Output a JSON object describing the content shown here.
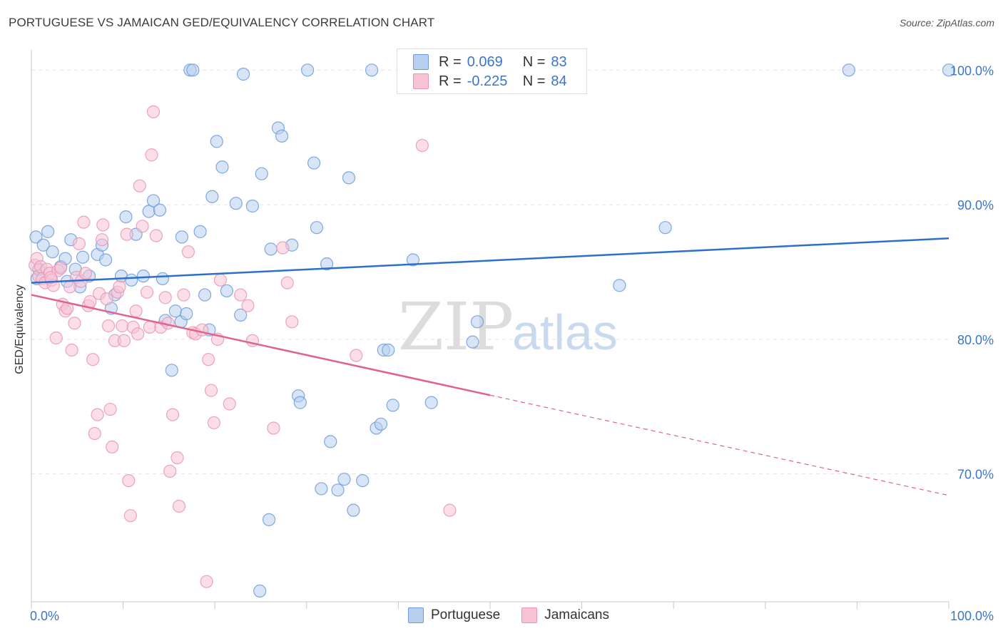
{
  "title": "PORTUGUESE VS JAMAICAN GED/EQUIVALENCY CORRELATION CHART",
  "source": "Source: ZipAtlas.com",
  "watermark": {
    "zip": "ZIP",
    "atlas": "atlas"
  },
  "legend_stats": [
    {
      "r_label": "R =",
      "r_value": "0.069",
      "n_label": "N =",
      "n_value": "83"
    },
    {
      "r_label": "R =",
      "r_value": "-0.225",
      "n_label": "N =",
      "n_value": "84"
    }
  ],
  "legend_series": [
    "Portuguese",
    "Jamaicans"
  ],
  "colors": {
    "blue": "#3b76c8",
    "blue_fill": "#b7d0f0",
    "blue_line": "#2d6fc9",
    "pink": "#e46a97",
    "pink_fill": "#f7c3d5",
    "pink_line": "#e0628f",
    "tick_text": "#3b76c8",
    "grid": "#e2e2e2"
  },
  "chart_data": {
    "type": "scatter",
    "title": "PORTUGUESE VS JAMAICAN GED/EQUIVALENCY CORRELATION CHART",
    "xlabel": "",
    "ylabel": "GED/Equivalency",
    "xlim": [
      0,
      100
    ],
    "ylim": [
      60.5,
      101.5
    ],
    "x_tick_labels": [
      "0.0%",
      "100.0%"
    ],
    "y_ticks": [
      {
        "value": 70,
        "label": "70.0%"
      },
      {
        "value": 80,
        "label": "80.0%"
      },
      {
        "value": 90,
        "label": "90.0%"
      },
      {
        "value": 100,
        "label": "100.0%"
      }
    ],
    "grid": true,
    "legend_position": "bottom-center",
    "series": [
      {
        "name": "Portuguese",
        "r": 0.069,
        "n": 83,
        "trend": {
          "x0": 0,
          "y0": 84.2,
          "x1": 100,
          "y1": 87.5,
          "solid_until": 100
        },
        "points": [
          [
            0.5,
            87.6
          ],
          [
            0.6,
            84.5
          ],
          [
            0.8,
            85.2
          ],
          [
            1.3,
            87.0
          ],
          [
            1.8,
            88.0
          ],
          [
            2.3,
            86.5
          ],
          [
            3.2,
            85.4
          ],
          [
            3.7,
            86.0
          ],
          [
            3.9,
            84.3
          ],
          [
            4.3,
            87.4
          ],
          [
            4.8,
            85.2
          ],
          [
            5.3,
            83.9
          ],
          [
            5.6,
            86.1
          ],
          [
            6.3,
            84.7
          ],
          [
            7.2,
            86.3
          ],
          [
            7.7,
            87.0
          ],
          [
            8.1,
            85.9
          ],
          [
            8.7,
            82.3
          ],
          [
            9.1,
            83.3
          ],
          [
            9.8,
            84.7
          ],
          [
            10.3,
            89.1
          ],
          [
            10.9,
            84.4
          ],
          [
            11.4,
            87.8
          ],
          [
            12.2,
            84.7
          ],
          [
            12.8,
            89.5
          ],
          [
            13.3,
            90.3
          ],
          [
            14.0,
            89.6
          ],
          [
            14.6,
            81.4
          ],
          [
            14.3,
            84.5
          ],
          [
            15.3,
            77.7
          ],
          [
            15.7,
            82.1
          ],
          [
            16.3,
            81.3
          ],
          [
            16.4,
            87.6
          ],
          [
            16.9,
            81.9
          ],
          [
            17.3,
            100.0
          ],
          [
            17.6,
            100.0
          ],
          [
            18.4,
            88.0
          ],
          [
            18.9,
            83.3
          ],
          [
            19.4,
            80.7
          ],
          [
            19.7,
            90.6
          ],
          [
            20.2,
            94.7
          ],
          [
            20.8,
            92.8
          ],
          [
            21.3,
            83.6
          ],
          [
            22.3,
            90.1
          ],
          [
            22.8,
            81.8
          ],
          [
            23.1,
            99.7
          ],
          [
            24.1,
            89.9
          ],
          [
            25.1,
            92.3
          ],
          [
            26.1,
            86.7
          ],
          [
            26.9,
            95.7
          ],
          [
            27.3,
            95.1
          ],
          [
            28.4,
            87.0
          ],
          [
            29.1,
            75.8
          ],
          [
            29.3,
            75.3
          ],
          [
            30.1,
            100.0
          ],
          [
            30.8,
            93.1
          ],
          [
            31.1,
            88.3
          ],
          [
            31.6,
            68.9
          ],
          [
            32.2,
            85.6
          ],
          [
            32.6,
            72.4
          ],
          [
            33.4,
            68.8
          ],
          [
            34.1,
            69.6
          ],
          [
            34.6,
            92.0
          ],
          [
            35.1,
            67.3
          ],
          [
            36.1,
            69.5
          ],
          [
            37.1,
            100.0
          ],
          [
            37.6,
            73.4
          ],
          [
            38.1,
            73.7
          ],
          [
            38.4,
            79.2
          ],
          [
            38.9,
            79.2
          ],
          [
            39.4,
            75.1
          ],
          [
            41.6,
            85.9
          ],
          [
            43.6,
            75.3
          ],
          [
            45.1,
            100.0
          ],
          [
            48.1,
            79.8
          ],
          [
            48.6,
            81.3
          ],
          [
            50.1,
            100.0
          ],
          [
            64.1,
            84.0
          ],
          [
            69.1,
            88.3
          ],
          [
            89.1,
            100.0
          ],
          [
            100.0,
            100.0
          ],
          [
            24.9,
            61.3
          ],
          [
            25.9,
            66.6
          ]
        ]
      },
      {
        "name": "Jamaicans",
        "r": -0.225,
        "n": 84,
        "trend": {
          "x0": 0,
          "y0": 83.3,
          "x1": 100,
          "y1": 68.4,
          "solid_until": 50
        },
        "points": [
          [
            0.4,
            85.5
          ],
          [
            0.6,
            86.0
          ],
          [
            0.8,
            84.7
          ],
          [
            1.0,
            85.4
          ],
          [
            1.2,
            84.5
          ],
          [
            1.5,
            84.2
          ],
          [
            1.7,
            85.2
          ],
          [
            2.0,
            84.9
          ],
          [
            2.2,
            84.4
          ],
          [
            2.4,
            84.0
          ],
          [
            2.7,
            80.1
          ],
          [
            2.9,
            85.1
          ],
          [
            3.2,
            85.3
          ],
          [
            3.4,
            82.6
          ],
          [
            3.7,
            82.1
          ],
          [
            3.9,
            82.3
          ],
          [
            4.2,
            83.9
          ],
          [
            4.4,
            79.2
          ],
          [
            4.7,
            81.2
          ],
          [
            4.9,
            84.6
          ],
          [
            5.2,
            87.1
          ],
          [
            5.4,
            84.3
          ],
          [
            5.7,
            88.7
          ],
          [
            5.9,
            84.9
          ],
          [
            6.2,
            82.5
          ],
          [
            6.4,
            82.8
          ],
          [
            6.7,
            78.5
          ],
          [
            6.9,
            73.0
          ],
          [
            7.2,
            74.4
          ],
          [
            7.4,
            83.4
          ],
          [
            7.7,
            87.4
          ],
          [
            7.8,
            88.5
          ],
          [
            8.2,
            83.0
          ],
          [
            8.4,
            81.0
          ],
          [
            8.6,
            74.8
          ],
          [
            8.8,
            72.0
          ],
          [
            9.1,
            79.9
          ],
          [
            9.4,
            83.5
          ],
          [
            9.6,
            83.9
          ],
          [
            9.9,
            81.0
          ],
          [
            10.1,
            79.9
          ],
          [
            10.4,
            87.8
          ],
          [
            10.6,
            69.5
          ],
          [
            10.8,
            66.9
          ],
          [
            11.1,
            80.9
          ],
          [
            11.4,
            82.1
          ],
          [
            11.6,
            80.4
          ],
          [
            11.8,
            91.4
          ],
          [
            12.1,
            88.4
          ],
          [
            12.6,
            83.5
          ],
          [
            12.9,
            80.9
          ],
          [
            13.1,
            93.7
          ],
          [
            13.3,
            96.9
          ],
          [
            13.6,
            87.7
          ],
          [
            14.1,
            80.9
          ],
          [
            14.6,
            83.1
          ],
          [
            14.9,
            81.2
          ],
          [
            15.1,
            70.2
          ],
          [
            15.4,
            74.4
          ],
          [
            15.9,
            71.2
          ],
          [
            16.1,
            67.6
          ],
          [
            16.6,
            83.3
          ],
          [
            17.1,
            86.5
          ],
          [
            17.6,
            80.5
          ],
          [
            17.9,
            80.4
          ],
          [
            18.6,
            80.7
          ],
          [
            19.1,
            62.0
          ],
          [
            19.3,
            78.5
          ],
          [
            19.6,
            76.2
          ],
          [
            19.9,
            73.8
          ],
          [
            20.3,
            80.0
          ],
          [
            20.6,
            84.4
          ],
          [
            21.6,
            75.2
          ],
          [
            22.8,
            83.3
          ],
          [
            23.6,
            82.5
          ],
          [
            24.1,
            79.9
          ],
          [
            26.4,
            73.4
          ],
          [
            27.4,
            86.8
          ],
          [
            27.9,
            84.2
          ],
          [
            28.4,
            81.3
          ],
          [
            35.4,
            78.8
          ],
          [
            42.6,
            94.4
          ],
          [
            45.6,
            67.3
          ],
          [
            2.1,
            84.6
          ]
        ]
      }
    ]
  }
}
